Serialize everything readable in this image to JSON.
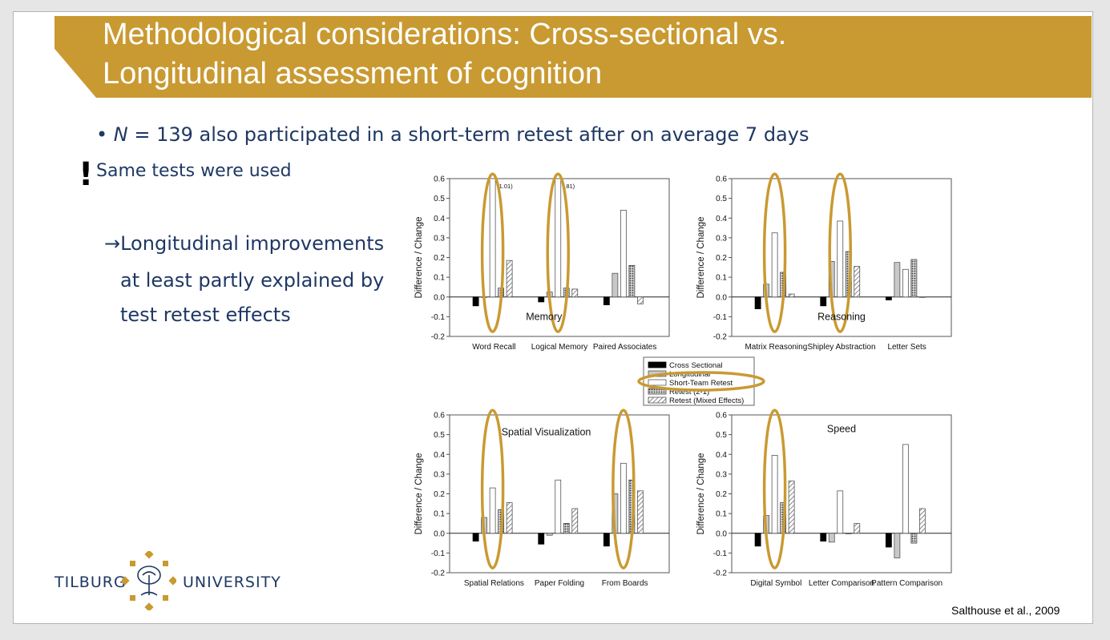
{
  "slide": {
    "title_line1": "Methodological considerations: Cross-sectional vs.",
    "title_line2": "Longitudinal assessment of cognition",
    "bullet1_prefix": "• ",
    "bullet1_italic": "N",
    "bullet1_rest": " = 139 also participated in a short-term retest after on average 7 days",
    "exclamation": "!",
    "point2": "Same tests were used",
    "arrow_line1": "→Longitudinal improvements",
    "arrow_line2": "at least partly explained by",
    "arrow_line3": "test retest effects",
    "citation": "Salthouse et al., 2009",
    "logo_left": "TILBURG",
    "logo_right": "UNIVERSITY"
  },
  "colors": {
    "gold": "#c99a32",
    "navy": "#1f3864",
    "highlight_ring": "#c99a32"
  },
  "chart_data": {
    "type": "bar",
    "shared": {
      "ylabel": "Difference / Change",
      "ylim": [
        -0.2,
        0.6
      ],
      "yticks": [
        "0.6",
        "0.5",
        "0.4",
        "0.3",
        "0.2",
        "0.1",
        "0.0",
        "-0.1",
        "-0.2"
      ],
      "series_names": [
        "Cross Sectional",
        "Longitudinal",
        "Short-Team Retest",
        "Retest (2-1)",
        "Retest (Mixed Effects)"
      ],
      "legend_placement": "center"
    },
    "panels": [
      {
        "panel_label": "Memory",
        "categories": [
          "Word Recall",
          "Logical Memory",
          "Paired Associates"
        ],
        "values": [
          [
            -0.045,
            -0.025,
            -0.04
          ],
          [
            0.0,
            0.025,
            0.12
          ],
          [
            0.6,
            0.6,
            0.44
          ],
          [
            0.045,
            0.045,
            0.16
          ],
          [
            0.185,
            0.04,
            -0.035
          ]
        ],
        "annotations": [
          "(1.01)",
          "(.81)"
        ],
        "highlight": [
          0,
          1
        ]
      },
      {
        "panel_label": "Reasoning",
        "categories": [
          "Matrix Reasoning",
          "Shipley Abstraction",
          "Letter Sets"
        ],
        "values": [
          [
            -0.06,
            -0.045,
            -0.015
          ],
          [
            0.065,
            0.18,
            0.175
          ],
          [
            0.325,
            0.385,
            0.14
          ],
          [
            0.125,
            0.23,
            0.19
          ],
          [
            0.015,
            0.155,
            0.0
          ]
        ],
        "highlight": [
          0,
          1
        ]
      },
      {
        "panel_label": "Spatial Visualization",
        "categories": [
          "Spatial Relations",
          "Paper Folding",
          "From Boards"
        ],
        "values": [
          [
            -0.04,
            -0.055,
            -0.065
          ],
          [
            0.08,
            -0.01,
            0.2
          ],
          [
            0.23,
            0.27,
            0.355
          ],
          [
            0.12,
            0.05,
            0.27
          ],
          [
            0.155,
            0.125,
            0.215
          ]
        ],
        "highlight": [
          0,
          2
        ]
      },
      {
        "panel_label": "Speed",
        "categories": [
          "Digital Symbol",
          "Letter Comparison",
          "Pattern Comparison"
        ],
        "values": [
          [
            -0.065,
            -0.04,
            -0.07
          ],
          [
            0.09,
            -0.045,
            -0.125
          ],
          [
            0.395,
            0.215,
            0.45
          ],
          [
            0.155,
            0.0,
            -0.05
          ],
          [
            0.265,
            0.05,
            0.125
          ]
        ],
        "highlight": [
          0
        ]
      }
    ]
  }
}
